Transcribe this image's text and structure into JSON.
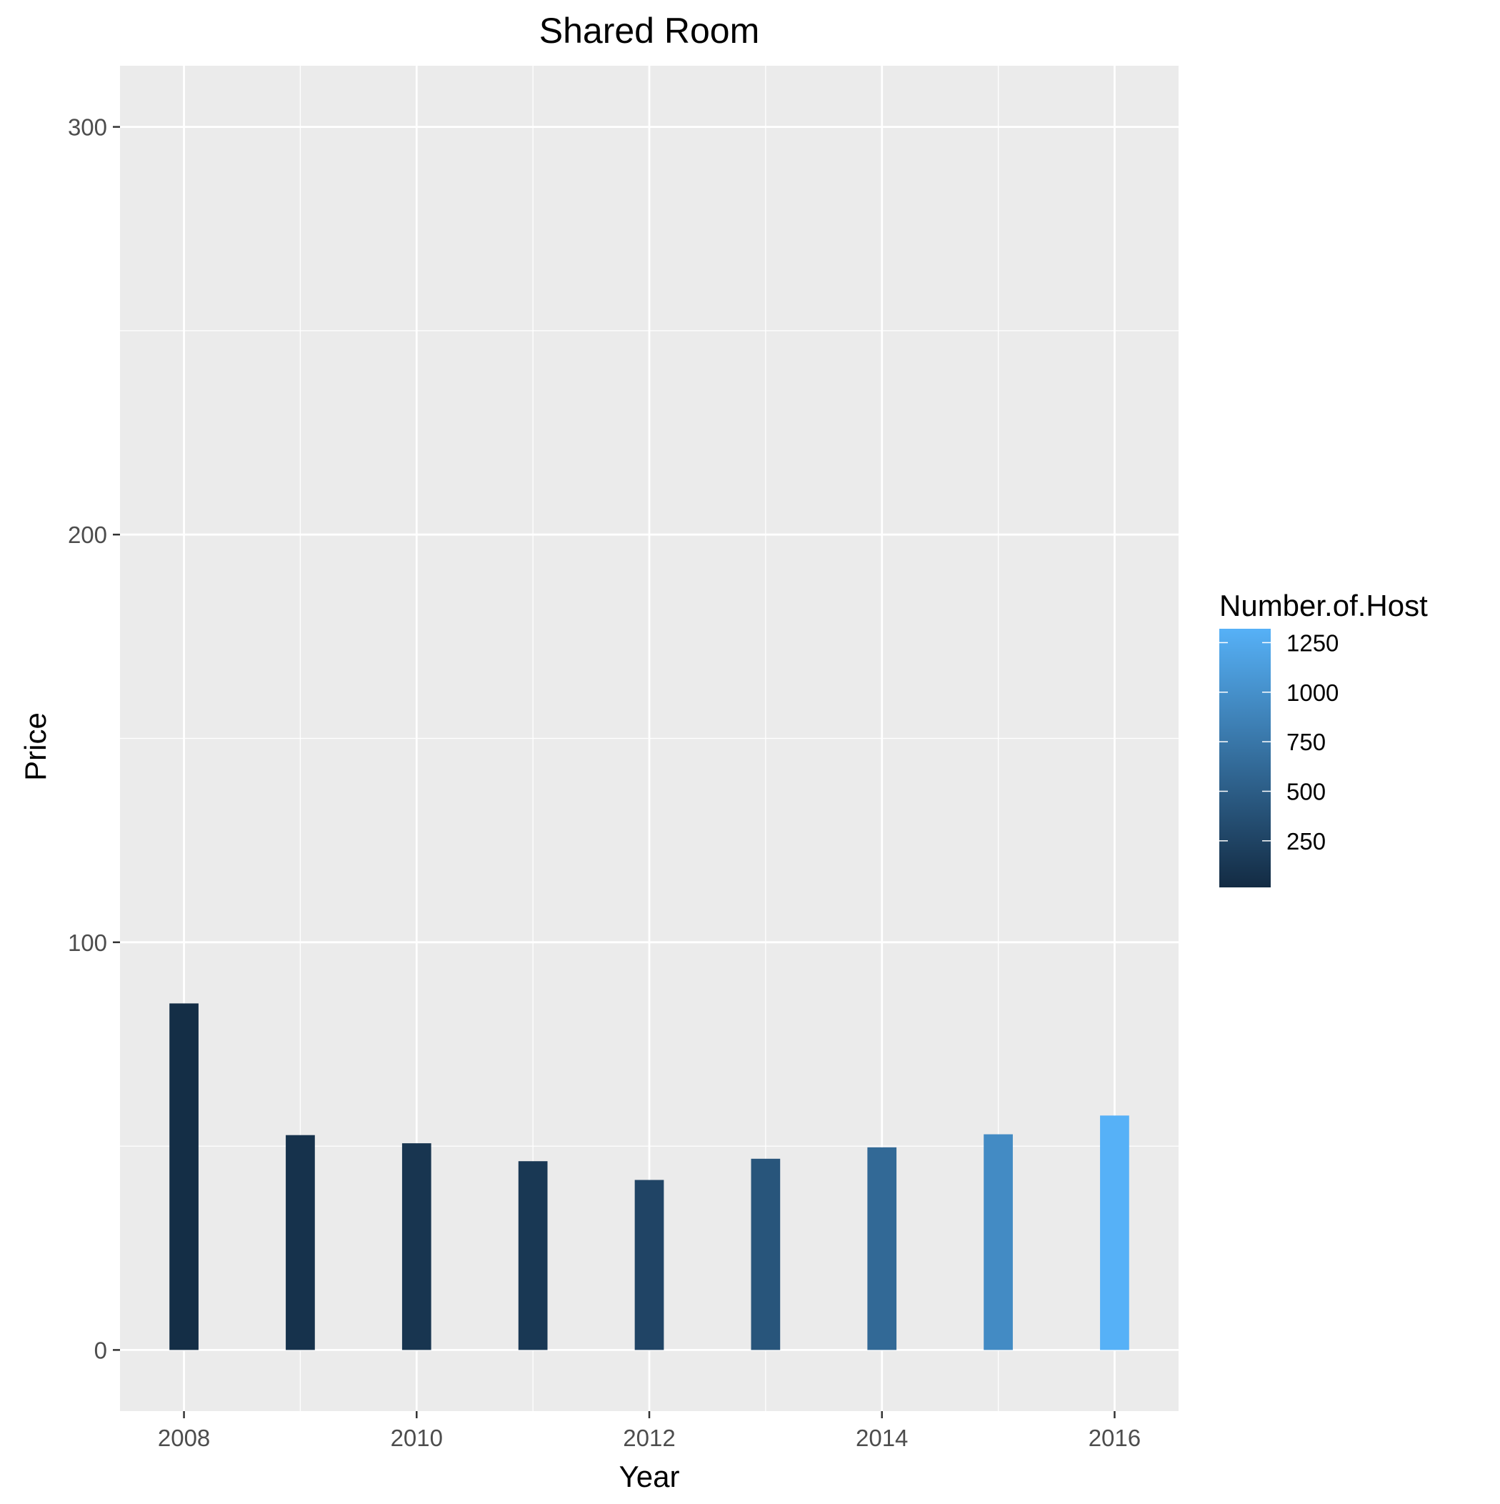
{
  "chart_data": {
    "type": "bar",
    "title": "Shared Room",
    "xlabel": "Year",
    "ylabel": "Price",
    "x": [
      2008,
      2009,
      2010,
      2011,
      2012,
      2013,
      2014,
      2015,
      2016
    ],
    "values": [
      85,
      52.7,
      50.7,
      46.3,
      41.7,
      46.9,
      49.7,
      52.9,
      57.5
    ],
    "fill_values": [
      40,
      80,
      110,
      140,
      260,
      420,
      620,
      950,
      1320
    ],
    "xticks": [
      2008,
      2010,
      2012,
      2014,
      2016
    ],
    "yticks": [
      0,
      100,
      200,
      300
    ],
    "xlim": [
      2007.45,
      2016.55
    ],
    "ylim": [
      -15,
      315
    ],
    "grid": true,
    "panel_background": "#ebebeb",
    "grid_color": "#ffffff",
    "legend": {
      "title": "Number.of.Host",
      "position": "right",
      "breaks": [
        250,
        500,
        750,
        1000,
        1250
      ],
      "range": [
        15,
        1320
      ],
      "low_color": "#132b43",
      "high_color": "#56b1f7"
    }
  }
}
